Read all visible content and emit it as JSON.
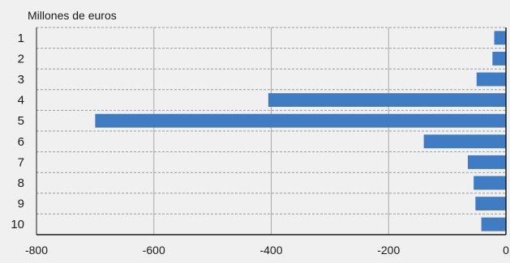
{
  "chart_data": {
    "type": "bar",
    "orientation": "horizontal",
    "unit_label": "Millones de euros",
    "categories": [
      "1",
      "2",
      "3",
      "4",
      "5",
      "6",
      "7",
      "8",
      "9",
      "10"
    ],
    "values": [
      -20,
      -23,
      -50,
      -405,
      -700,
      -140,
      -65,
      -55,
      -52,
      -42
    ],
    "xlim": [
      -800,
      0
    ],
    "xticks": [
      -800,
      -600,
      -400,
      -200,
      0
    ],
    "grid": true,
    "bar_color": "#3f7cc4",
    "gridline_color": "#9a9a9a"
  }
}
